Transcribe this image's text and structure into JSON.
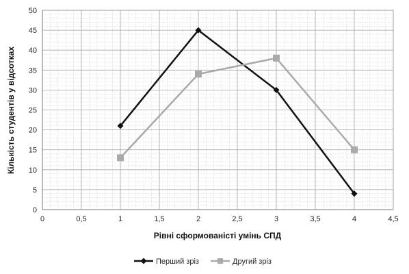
{
  "chart_data": {
    "type": "line",
    "title": "",
    "xlabel": "Рівні сформованісті умінь СПД",
    "ylabel": "Кількість студентів у відсотках",
    "xlim": [
      0,
      4.5
    ],
    "ylim": [
      0,
      50
    ],
    "x_ticks": [
      "0",
      "0,5",
      "1",
      "1,5",
      "2",
      "2,5",
      "3",
      "3,5",
      "4",
      "4,5"
    ],
    "y_ticks": [
      "0",
      "5",
      "10",
      "15",
      "20",
      "25",
      "30",
      "35",
      "40",
      "45",
      "50"
    ],
    "grid": true,
    "legend_position": "bottom",
    "series": [
      {
        "name": "Перший зріз",
        "x": [
          1,
          2,
          3,
          4
        ],
        "values": [
          21,
          45,
          30,
          4
        ],
        "color": "#111111",
        "marker": "diamond"
      },
      {
        "name": "Другий зріз",
        "x": [
          1,
          2,
          3,
          4
        ],
        "values": [
          13,
          34,
          38,
          15
        ],
        "color": "#aaaaaa",
        "marker": "square"
      }
    ]
  }
}
